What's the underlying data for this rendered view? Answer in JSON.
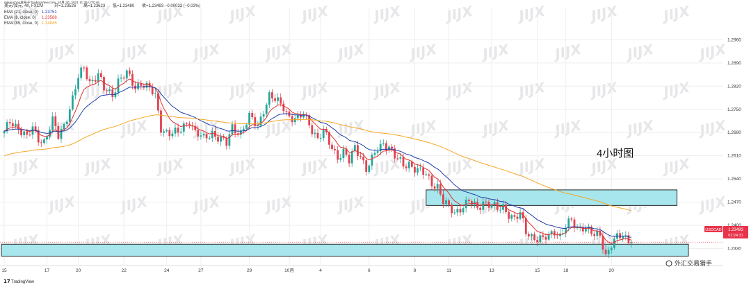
{
  "header": {
    "line1": {
      "pair": "美元/加元, 4h, FXCM",
      "open": "开=1.23526",
      "high": "高=1.23623",
      "low": "低=1.23480",
      "change": "收=1.23493 −0.00033 (−0.03%)"
    },
    "publisher": "mikeuchou发布于TradingView.com, 10月 20, 2021 11:35 UTC+8",
    "ema_rows": [
      {
        "label": "EMA (21, close, 0)",
        "value": "1.23751",
        "color": "#1e3ea8"
      },
      {
        "label": "EMA (8, close, 0)",
        "value": "1.23588",
        "color": "#e03030"
      },
      {
        "label": "EMA (89, close, 0)",
        "value": "1.24845",
        "color": "#f5a623"
      }
    ]
  },
  "annotation": "4小时图",
  "price_tag": {
    "symbol": "USDCAD",
    "value": "1.23493",
    "countdown": "01:24:31",
    "color": "#e8334a"
  },
  "watermark_text": "JIJX",
  "footer": {
    "brand": "TradingView",
    "attribution": "外汇交易猎手"
  },
  "colors": {
    "up": "#26a69a",
    "down": "#e0434f",
    "zone_fill": "#a6e6ec",
    "zone_stroke": "#2a2a2a",
    "grid": "#eeeeee"
  },
  "chart_data": {
    "type": "candlestick",
    "title": "",
    "xlabel": "",
    "ylabel": "",
    "ylim": [
      1.2285,
      1.3055
    ],
    "y_ticks": [
      "1.2960",
      "1.2890",
      "1.2820",
      "1.2750",
      "1.2680",
      "1.2610",
      "1.2540",
      "1.2470",
      "1.2400",
      "1.2330"
    ],
    "x_ticks": [
      {
        "label": "15",
        "bar": 0
      },
      {
        "label": "17",
        "bar": 15
      },
      {
        "label": "20",
        "bar": 26
      },
      {
        "label": "22",
        "bar": 42
      },
      {
        "label": "24",
        "bar": 57
      },
      {
        "label": "27",
        "bar": 69
      },
      {
        "label": "29",
        "bar": 86
      },
      {
        "label": "10月",
        "bar": 100
      },
      {
        "label": "4",
        "bar": 111
      },
      {
        "label": "6",
        "bar": 128
      },
      {
        "label": "8",
        "bar": 144
      },
      {
        "label": "11",
        "bar": 156
      },
      {
        "label": "13",
        "bar": 171
      },
      {
        "label": "15",
        "bar": 187
      },
      {
        "label": "18",
        "bar": 197
      },
      {
        "label": "20",
        "bar": 213
      }
    ],
    "anchors": [
      [
        0,
        1.2676
      ],
      [
        2,
        1.2712
      ],
      [
        5,
        1.2698
      ],
      [
        8,
        1.2663
      ],
      [
        10,
        1.269
      ],
      [
        12,
        1.2664
      ],
      [
        14,
        1.2655
      ],
      [
        17,
        1.2712
      ],
      [
        19,
        1.2668
      ],
      [
        21,
        1.2705
      ],
      [
        24,
        1.2782
      ],
      [
        26,
        1.2843
      ],
      [
        28,
        1.2875
      ],
      [
        30,
        1.2835
      ],
      [
        33,
        1.2855
      ],
      [
        35,
        1.2808
      ],
      [
        38,
        1.2796
      ],
      [
        40,
        1.284
      ],
      [
        43,
        1.2855
      ],
      [
        46,
        1.2815
      ],
      [
        48,
        1.2835
      ],
      [
        51,
        1.2811
      ],
      [
        53,
        1.2785
      ],
      [
        55,
        1.2695
      ],
      [
        58,
        1.268
      ],
      [
        61,
        1.2675
      ],
      [
        63,
        1.27
      ],
      [
        65,
        1.272
      ],
      [
        67,
        1.268
      ],
      [
        70,
        1.2658
      ],
      [
        73,
        1.2682
      ],
      [
        75,
        1.2667
      ],
      [
        78,
        1.2643
      ],
      [
        80,
        1.2695
      ],
      [
        83,
        1.2682
      ],
      [
        86,
        1.2723
      ],
      [
        89,
        1.27
      ],
      [
        91,
        1.2753
      ],
      [
        93,
        1.279
      ],
      [
        95,
        1.2775
      ],
      [
        98,
        1.276
      ],
      [
        100,
        1.273
      ],
      [
        103,
        1.2715
      ],
      [
        105,
        1.2735
      ],
      [
        107,
        1.271
      ],
      [
        110,
        1.266
      ],
      [
        112,
        1.268
      ],
      [
        114,
        1.265
      ],
      [
        117,
        1.261
      ],
      [
        119,
        1.262
      ],
      [
        121,
        1.259
      ],
      [
        123,
        1.2635
      ],
      [
        125,
        1.2615
      ],
      [
        127,
        1.257
      ],
      [
        129,
        1.2595
      ],
      [
        131,
        1.263
      ],
      [
        133,
        1.265
      ],
      [
        135,
        1.264
      ],
      [
        137,
        1.2605
      ],
      [
        140,
        1.258
      ],
      [
        142,
        1.259
      ],
      [
        145,
        1.2565
      ],
      [
        148,
        1.255
      ],
      [
        150,
        1.253
      ],
      [
        152,
        1.252
      ],
      [
        154,
        1.247
      ],
      [
        156,
        1.245
      ],
      [
        158,
        1.244
      ],
      [
        160,
        1.2455
      ],
      [
        163,
        1.247
      ],
      [
        166,
        1.245
      ],
      [
        168,
        1.2475
      ],
      [
        170,
        1.2465
      ],
      [
        173,
        1.2445
      ],
      [
        175,
        1.2455
      ],
      [
        177,
        1.2438
      ],
      [
        179,
        1.242
      ],
      [
        181,
        1.243
      ],
      [
        183,
        1.238
      ],
      [
        185,
        1.237
      ],
      [
        187,
        1.2362
      ],
      [
        189,
        1.2355
      ],
      [
        191,
        1.2365
      ],
      [
        193,
        1.2385
      ],
      [
        195,
        1.237
      ],
      [
        197,
        1.2395
      ],
      [
        199,
        1.241
      ],
      [
        201,
        1.239
      ],
      [
        203,
        1.24
      ],
      [
        205,
        1.2385
      ],
      [
        207,
        1.2365
      ],
      [
        209,
        1.237
      ],
      [
        211,
        1.2312
      ],
      [
        213,
        1.2345
      ],
      [
        215,
        1.236
      ],
      [
        217,
        1.2365
      ],
      [
        219,
        1.2357
      ],
      [
        220,
        1.2352
      ]
    ],
    "bar_count": 221,
    "zones": [
      {
        "y_top": 1.2507,
        "y_bottom": 1.246,
        "bar_start": 148,
        "bar_end": 236
      },
      {
        "y_top": 1.2343,
        "y_bottom": 1.2307,
        "bar_start": -1,
        "bar_end": 240
      }
    ],
    "last_price": 1.23493,
    "series": [
      {
        "name": "EMA (8, close, 0)",
        "period": 8,
        "color": "#e03030"
      },
      {
        "name": "EMA (21, close, 0)",
        "period": 21,
        "color": "#1e3ea8"
      },
      {
        "name": "EMA (89, close, 0)",
        "period": 89,
        "color": "#f5a623"
      }
    ],
    "grid": true
  }
}
